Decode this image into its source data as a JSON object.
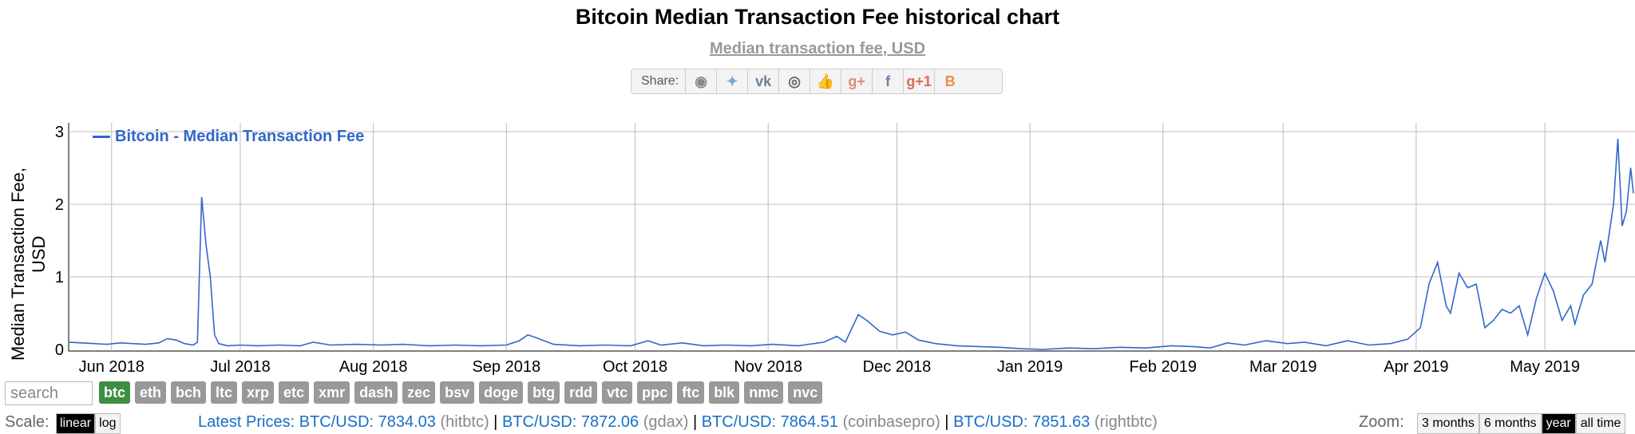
{
  "title": "Bitcoin Median Transaction Fee historical chart",
  "subtitle": "Median transaction fee, USD",
  "share": {
    "label": "Share:",
    "buttons": [
      {
        "name": "reddit-icon",
        "glyph": "◉",
        "color": "#888888"
      },
      {
        "name": "twitter-icon",
        "glyph": "✦",
        "color": "#7aa6d8"
      },
      {
        "name": "vk-icon",
        "glyph": "vk",
        "color": "#6a7f99"
      },
      {
        "name": "weibo-icon",
        "glyph": "◎",
        "color": "#666666"
      },
      {
        "name": "like-icon",
        "glyph": "👍",
        "color": "#7aa6d8"
      },
      {
        "name": "google-plus-icon",
        "glyph": "g+",
        "color": "#e08a7a"
      },
      {
        "name": "facebook-icon",
        "glyph": "f",
        "color": "#6a7fa8"
      },
      {
        "name": "google-plus-one-icon",
        "glyph": "g+1",
        "color": "#e06a55"
      },
      {
        "name": "blogger-icon",
        "glyph": "B",
        "color": "#f08a4b"
      }
    ]
  },
  "chart_data": {
    "type": "line",
    "title": "Bitcoin Median Transaction Fee historical chart",
    "subtitle": "Median transaction fee, USD",
    "ylabel_line1": "Median Transaction Fee,",
    "ylabel_line2": "USD",
    "ylim": [
      0,
      3.2
    ],
    "yticks": [
      0,
      1,
      2,
      3
    ],
    "grid": true,
    "legend_position": "top-left",
    "x_tick_labels": [
      "Jun 2018",
      "Jul 2018",
      "Aug 2018",
      "Sep 2018",
      "Oct 2018",
      "Nov 2018",
      "Dec 2018",
      "Jan 2019",
      "Feb 2019",
      "Mar 2019",
      "Apr 2019",
      "May 2019"
    ],
    "x_tick_dates": [
      "2018-06-01",
      "2018-07-01",
      "2018-08-01",
      "2018-09-01",
      "2018-10-01",
      "2018-11-01",
      "2018-12-01",
      "2019-01-01",
      "2019-02-01",
      "2019-03-01",
      "2019-04-01",
      "2019-05-01"
    ],
    "xlim": [
      "2018-05-22",
      "2019-05-22"
    ],
    "series": [
      {
        "name": "Bitcoin - Median Transaction Fee",
        "color": "#3366cc",
        "points": [
          [
            "2018-05-22",
            0.1
          ],
          [
            "2018-05-25",
            0.09
          ],
          [
            "2018-05-28",
            0.08
          ],
          [
            "2018-05-31",
            0.07
          ],
          [
            "2018-06-03",
            0.09
          ],
          [
            "2018-06-06",
            0.08
          ],
          [
            "2018-06-09",
            0.07
          ],
          [
            "2018-06-12",
            0.09
          ],
          [
            "2018-06-14",
            0.15
          ],
          [
            "2018-06-16",
            0.13
          ],
          [
            "2018-06-18",
            0.08
          ],
          [
            "2018-06-20",
            0.06
          ],
          [
            "2018-06-21",
            0.1
          ],
          [
            "2018-06-22",
            2.1
          ],
          [
            "2018-06-23",
            1.45
          ],
          [
            "2018-06-24",
            1.0
          ],
          [
            "2018-06-25",
            0.2
          ],
          [
            "2018-06-26",
            0.08
          ],
          [
            "2018-06-28",
            0.05
          ],
          [
            "2018-07-01",
            0.06
          ],
          [
            "2018-07-05",
            0.05
          ],
          [
            "2018-07-10",
            0.06
          ],
          [
            "2018-07-15",
            0.05
          ],
          [
            "2018-07-18",
            0.1
          ],
          [
            "2018-07-22",
            0.06
          ],
          [
            "2018-07-28",
            0.07
          ],
          [
            "2018-08-03",
            0.06
          ],
          [
            "2018-08-08",
            0.07
          ],
          [
            "2018-08-14",
            0.05
          ],
          [
            "2018-08-20",
            0.06
          ],
          [
            "2018-08-26",
            0.05
          ],
          [
            "2018-09-01",
            0.06
          ],
          [
            "2018-09-04",
            0.12
          ],
          [
            "2018-09-06",
            0.2
          ],
          [
            "2018-09-08",
            0.16
          ],
          [
            "2018-09-12",
            0.07
          ],
          [
            "2018-09-18",
            0.05
          ],
          [
            "2018-09-24",
            0.06
          ],
          [
            "2018-09-30",
            0.05
          ],
          [
            "2018-10-04",
            0.12
          ],
          [
            "2018-10-07",
            0.06
          ],
          [
            "2018-10-12",
            0.09
          ],
          [
            "2018-10-17",
            0.05
          ],
          [
            "2018-10-22",
            0.06
          ],
          [
            "2018-10-28",
            0.05
          ],
          [
            "2018-11-02",
            0.07
          ],
          [
            "2018-11-08",
            0.05
          ],
          [
            "2018-11-14",
            0.1
          ],
          [
            "2018-11-17",
            0.18
          ],
          [
            "2018-11-19",
            0.1
          ],
          [
            "2018-11-22",
            0.48
          ],
          [
            "2018-11-24",
            0.4
          ],
          [
            "2018-11-27",
            0.25
          ],
          [
            "2018-11-30",
            0.2
          ],
          [
            "2018-12-03",
            0.24
          ],
          [
            "2018-12-06",
            0.13
          ],
          [
            "2018-12-10",
            0.08
          ],
          [
            "2018-12-15",
            0.05
          ],
          [
            "2018-12-20",
            0.04
          ],
          [
            "2018-12-25",
            0.03
          ],
          [
            "2018-12-30",
            0.01
          ],
          [
            "2019-01-04",
            0.0
          ],
          [
            "2019-01-10",
            0.02
          ],
          [
            "2019-01-16",
            0.01
          ],
          [
            "2019-01-22",
            0.03
          ],
          [
            "2019-01-28",
            0.02
          ],
          [
            "2019-02-03",
            0.05
          ],
          [
            "2019-02-08",
            0.04
          ],
          [
            "2019-02-12",
            0.02
          ],
          [
            "2019-02-16",
            0.09
          ],
          [
            "2019-02-20",
            0.06
          ],
          [
            "2019-02-25",
            0.12
          ],
          [
            "2019-03-02",
            0.08
          ],
          [
            "2019-03-06",
            0.1
          ],
          [
            "2019-03-11",
            0.05
          ],
          [
            "2019-03-16",
            0.12
          ],
          [
            "2019-03-21",
            0.06
          ],
          [
            "2019-03-26",
            0.08
          ],
          [
            "2019-03-30",
            0.14
          ],
          [
            "2019-04-02",
            0.3
          ],
          [
            "2019-04-04",
            0.9
          ],
          [
            "2019-04-06",
            1.2
          ],
          [
            "2019-04-08",
            0.6
          ],
          [
            "2019-04-09",
            0.5
          ],
          [
            "2019-04-11",
            1.05
          ],
          [
            "2019-04-13",
            0.85
          ],
          [
            "2019-04-15",
            0.9
          ],
          [
            "2019-04-17",
            0.3
          ],
          [
            "2019-04-19",
            0.4
          ],
          [
            "2019-04-21",
            0.55
          ],
          [
            "2019-04-23",
            0.5
          ],
          [
            "2019-04-25",
            0.6
          ],
          [
            "2019-04-27",
            0.2
          ],
          [
            "2019-04-29",
            0.7
          ],
          [
            "2019-05-01",
            1.05
          ],
          [
            "2019-05-03",
            0.8
          ],
          [
            "2019-05-05",
            0.4
          ],
          [
            "2019-05-07",
            0.6
          ],
          [
            "2019-05-08",
            0.35
          ],
          [
            "2019-05-10",
            0.75
          ],
          [
            "2019-05-12",
            0.9
          ],
          [
            "2019-05-14",
            1.5
          ],
          [
            "2019-05-15",
            1.2
          ],
          [
            "2019-05-17",
            2.0
          ],
          [
            "2019-05-18",
            2.9
          ],
          [
            "2019-05-19",
            1.7
          ],
          [
            "2019-05-20",
            1.9
          ],
          [
            "2019-05-21",
            2.5
          ],
          [
            "2019-05-22",
            2.15
          ]
        ]
      }
    ]
  },
  "search": {
    "placeholder": "search"
  },
  "coins": [
    "btc",
    "eth",
    "bch",
    "ltc",
    "xrp",
    "etc",
    "xmr",
    "dash",
    "zec",
    "bsv",
    "doge",
    "btg",
    "rdd",
    "vtc",
    "ppc",
    "ftc",
    "blk",
    "nmc",
    "nvc"
  ],
  "active_coin": "btc",
  "scale": {
    "label": "Scale:",
    "options": [
      "linear",
      "log"
    ],
    "active": "linear"
  },
  "prices": {
    "prefix": "Latest Prices:",
    "items": [
      {
        "text": "BTC/USD: 7834.03",
        "source": "(hitbtc)"
      },
      {
        "text": "BTC/USD: 7872.06",
        "source": "(gdax)"
      },
      {
        "text": "BTC/USD: 7864.51",
        "source": "(coinbasepro)"
      },
      {
        "text": "BTC/USD: 7851.63",
        "source": "(rightbtc)"
      }
    ]
  },
  "zoom": {
    "label": "Zoom:",
    "options": [
      "3 months",
      "6 months",
      "year",
      "all time"
    ],
    "active": "year"
  }
}
